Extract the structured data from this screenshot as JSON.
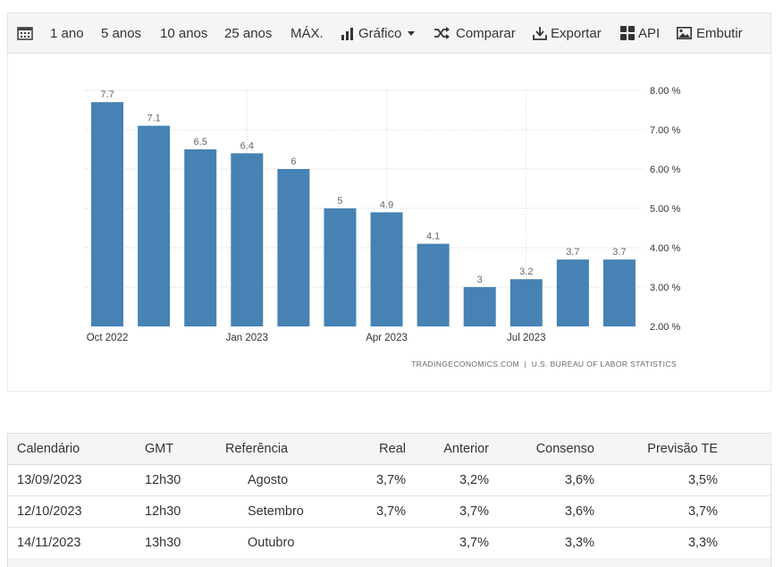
{
  "toolbar": {
    "ranges": [
      "1 ano",
      "5 anos",
      "10 anos",
      "25 anos",
      "MÁX."
    ],
    "chart_label": "Gráfico",
    "compare_label": "Comparar",
    "export_label": "Exportar",
    "api_label": "API",
    "embed_label": "Embutir"
  },
  "chart_data": {
    "type": "bar",
    "categories": [
      "Oct 2022",
      "Nov 2022",
      "Dec 2022",
      "Jan 2023",
      "Feb 2023",
      "Mar 2023",
      "Apr 2023",
      "May 2023",
      "Jun 2023",
      "Jul 2023",
      "Aug 2023",
      "Sep 2023"
    ],
    "values": [
      7.7,
      7.1,
      6.5,
      6.4,
      6,
      5,
      4.9,
      4.1,
      3,
      3.2,
      3.7,
      3.7
    ],
    "value_labels": [
      "7.7",
      "7.1",
      "6.5",
      "6.4",
      "6",
      "5",
      "4.9",
      "4.1",
      "3",
      "3.2",
      "3.7",
      "3.7"
    ],
    "x_tick_labels": [
      "Oct 2022",
      "Jan 2023",
      "Apr 2023",
      "Jul 2023"
    ],
    "y_ticks": [
      "2.00 %",
      "3.00 %",
      "4.00 %",
      "5.00 %",
      "6.00 %",
      "7.00 %",
      "8.00 %"
    ],
    "ylim": [
      2,
      8
    ],
    "bar_color": "#4682b4",
    "grid": true,
    "y_axis_side": "right",
    "source": "TRADINGECONOMICS.COM  |  U.S. BUREAU OF LABOR STATISTICS"
  },
  "table": {
    "headers": [
      "Calendário",
      "GMT",
      "Referência",
      "Real",
      "Anterior",
      "Consenso",
      "Previsão TE"
    ],
    "rows": [
      [
        "13/09/2023",
        "12h30",
        "Agosto",
        "3,7%",
        "3,2%",
        "3,6%",
        "3,5%"
      ],
      [
        "12/10/2023",
        "12h30",
        "Setembro",
        "3,7%",
        "3,7%",
        "3,6%",
        "3,7%"
      ],
      [
        "14/11/2023",
        "13h30",
        "Outubro",
        "",
        "3,7%",
        "3,3%",
        "3,3%"
      ]
    ]
  }
}
